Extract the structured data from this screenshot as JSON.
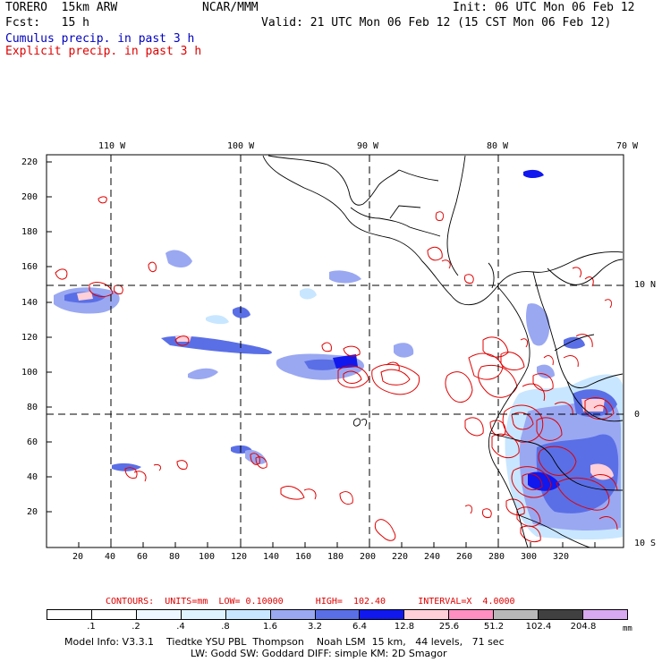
{
  "header": {
    "model": "TORERO  15km ARW",
    "org": "NCAR/MMM",
    "init": "Init: 06 UTC Mon 06 Feb 12",
    "fcst": "Fcst:   15 h",
    "valid": "Valid: 21 UTC Mon 06 Feb 12 (15 CST Mon 06 Feb 12)",
    "legend1": "Cumulus precip. in past 3 h",
    "legend2": "Explicit precip. in past 3 h"
  },
  "axes": {
    "lon_labels": [
      "110 W",
      "100 W",
      "90 W",
      "80 W",
      "70 W"
    ],
    "lat_labels": [
      "10 N",
      "0",
      "10 S"
    ],
    "x_ticks": [
      "20",
      "40",
      "60",
      "80",
      "100",
      "120",
      "140",
      "160",
      "180",
      "200",
      "220",
      "240",
      "260",
      "280",
      "300",
      "320"
    ],
    "y_ticks": [
      "220",
      "200",
      "180",
      "160",
      "140",
      "120",
      "100",
      "80",
      "60",
      "40",
      "20"
    ]
  },
  "contours": {
    "label": "CONTOURS:  UNITS=mm  LOW= 0.10000      HIGH=  102.40      INTERVAL=X  4.0000"
  },
  "colorbar": {
    "colors": [
      "#ffffff",
      "#ffffff",
      "#eef7ff",
      "#dff3ff",
      "#c8e6ff",
      "#9aa8f2",
      "#5a6fe6",
      "#1018ee",
      "#ffd0d8",
      "#ff8fc0",
      "#b8b8b8",
      "#404040",
      "#d8a8f0"
    ],
    "labels": [
      ".1",
      ".2",
      ".4",
      ".8",
      "1.6",
      "3.2",
      "6.4",
      "12.8",
      "25.6",
      "51.2",
      "102.4",
      "204.8"
    ],
    "unit": "mm"
  },
  "footer": {
    "line1": "Model Info: V3.3.1    Tiedtke YSU PBL  Thompson    Noah LSM  15 km,   44 levels,   71 sec",
    "line2": "LW: Godd SW: Goddard DIFF: simple KM: 2D Smagor"
  },
  "colors": {
    "contour": "#e00000",
    "grid": "#000000"
  }
}
